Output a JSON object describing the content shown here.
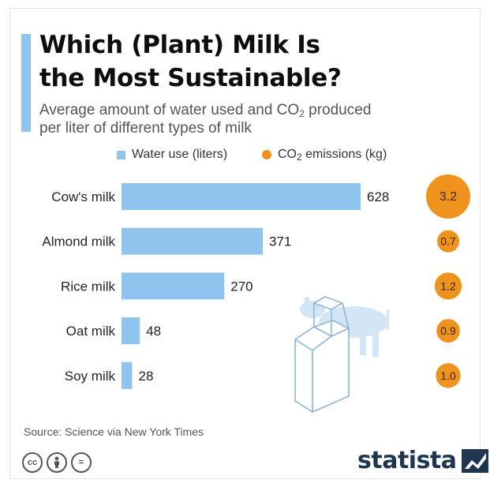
{
  "header": {
    "title_line1": "Which (Plant) Milk Is",
    "title_line2": "the Most Sustainable?",
    "subtitle_line1_a": "Average amount of water used and CO",
    "subtitle_line1_sub": "2",
    "subtitle_line1_b": " produced",
    "subtitle_line2": "per liter of different types of milk"
  },
  "legend": {
    "water": "Water use (liters)",
    "co2_a": "CO",
    "co2_sub": "2",
    "co2_b": " emissions (kg)"
  },
  "colors": {
    "bar": "#8fc4ee",
    "bubble": "#f0931e",
    "accent": "#8fc4ee",
    "brand": "#1f3550"
  },
  "chart_data": {
    "type": "bar",
    "orientation": "horizontal",
    "categories": [
      "Cow's milk",
      "Almond milk",
      "Rice milk",
      "Oat milk",
      "Soy milk"
    ],
    "series": [
      {
        "name": "Water use (liters)",
        "values": [
          628,
          371,
          270,
          48,
          28
        ]
      },
      {
        "name": "CO2 emissions (kg)",
        "values": [
          3.2,
          0.7,
          1.2,
          0.9,
          1.0
        ],
        "labels": [
          "3.2",
          "0.7",
          "1.2",
          "0.9",
          "1.0"
        ]
      }
    ]
  },
  "footer": {
    "source": "Source: Science via New York Times",
    "license_icons": [
      "cc-icon",
      "attribution-icon",
      "no-derivatives-icon"
    ],
    "cc_label": "cc",
    "nd_label": "=",
    "brand": "statista"
  }
}
